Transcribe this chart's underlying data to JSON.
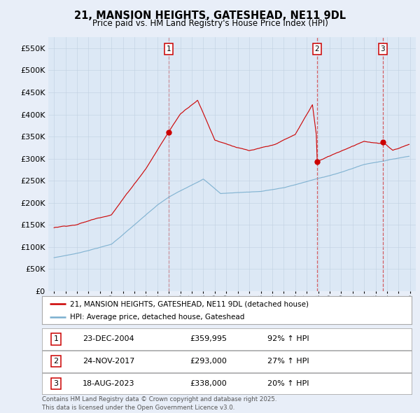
{
  "title": "21, MANSION HEIGHTS, GATESHEAD, NE11 9DL",
  "subtitle": "Price paid vs. HM Land Registry's House Price Index (HPI)",
  "legend_label_red": "21, MANSION HEIGHTS, GATESHEAD, NE11 9DL (detached house)",
  "legend_label_blue": "HPI: Average price, detached house, Gateshead",
  "sale_points": [
    {
      "label": "1",
      "year": 2004.97,
      "price": 359995,
      "date": "23-DEC-2004",
      "hpi_pct": "92% ↑ HPI"
    },
    {
      "label": "2",
      "year": 2017.9,
      "price": 293000,
      "date": "24-NOV-2017",
      "hpi_pct": "27% ↑ HPI"
    },
    {
      "label": "3",
      "year": 2023.62,
      "price": 338000,
      "date": "18-AUG-2023",
      "hpi_pct": "20% ↑ HPI"
    }
  ],
  "footer_line1": "Contains HM Land Registry data © Crown copyright and database right 2025.",
  "footer_line2": "This data is licensed under the Open Government Licence v3.0.",
  "xlim": [
    1994.5,
    2026.5
  ],
  "ylim": [
    0,
    575000
  ],
  "yticks": [
    0,
    50000,
    100000,
    150000,
    200000,
    250000,
    300000,
    350000,
    400000,
    450000,
    500000,
    550000
  ],
  "ytick_labels": [
    "£0",
    "£50K",
    "£100K",
    "£150K",
    "£200K",
    "£250K",
    "£300K",
    "£350K",
    "£400K",
    "£450K",
    "£500K",
    "£550K"
  ],
  "background_color": "#e8eef8",
  "plot_bg_color": "#dce8f5",
  "red_color": "#cc0000",
  "blue_color": "#7aafcf",
  "dashed_color": "#cc0000",
  "grid_color": "#c0d0e0"
}
